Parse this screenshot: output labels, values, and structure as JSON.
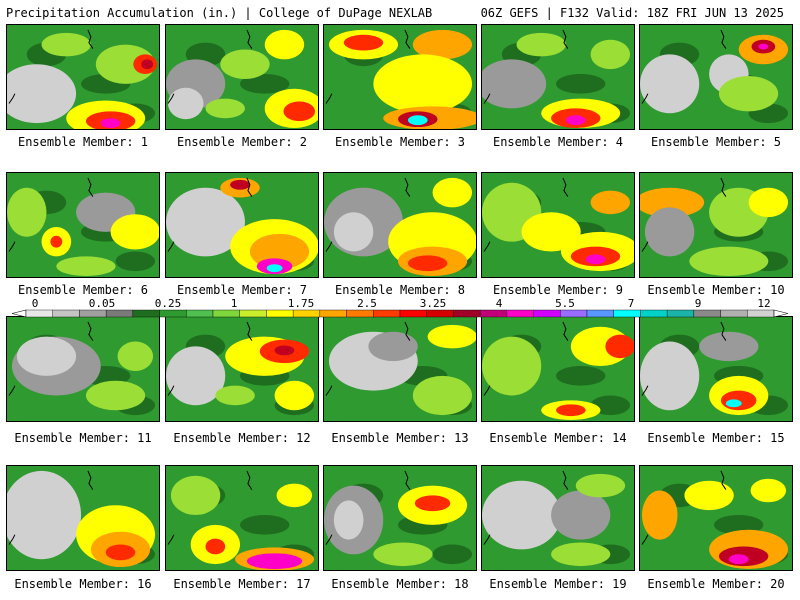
{
  "header": {
    "left": "Precipitation Accumulation (in.) | College of DuPage NEXLAB",
    "right": "06Z GEFS | F132 Valid: 18Z FRI JUN 13 2025"
  },
  "members": [
    {
      "label": "Ensemble Member: 1"
    },
    {
      "label": "Ensemble Member: 2"
    },
    {
      "label": "Ensemble Member: 3"
    },
    {
      "label": "Ensemble Member: 4"
    },
    {
      "label": "Ensemble Member: 5"
    },
    {
      "label": "Ensemble Member: 6"
    },
    {
      "label": "Ensemble Member: 7"
    },
    {
      "label": "Ensemble Member: 8"
    },
    {
      "label": "Ensemble Member: 9"
    },
    {
      "label": "Ensemble Member: 10"
    },
    {
      "label": "Ensemble Member: 11"
    },
    {
      "label": "Ensemble Member: 12"
    },
    {
      "label": "Ensemble Member: 13"
    },
    {
      "label": "Ensemble Member: 14"
    },
    {
      "label": "Ensemble Member: 15"
    },
    {
      "label": "Ensemble Member: 16"
    },
    {
      "label": "Ensemble Member: 17"
    },
    {
      "label": "Ensemble Member: 18"
    },
    {
      "label": "Ensemble Member: 19"
    },
    {
      "label": "Ensemble Member: 20"
    }
  ],
  "legend": {
    "tick_labels": [
      "0",
      "0.05",
      "0.25",
      "1",
      "1.75",
      "2.5",
      "3.25",
      "4",
      "5.5",
      "7",
      "9",
      "12"
    ],
    "colors": [
      "#e8e8e8",
      "#c4c4c4",
      "#a0a0a0",
      "#7a7a7a",
      "#1f6e1f",
      "#2f9a2f",
      "#4fc04f",
      "#7fd83a",
      "#c8ee2c",
      "#ffff00",
      "#ffd200",
      "#ffa500",
      "#ff7a00",
      "#ff3c00",
      "#ff0000",
      "#d40000",
      "#a00028",
      "#c00078",
      "#ff00c8",
      "#d000ff",
      "#9a6cff",
      "#5a96ff",
      "#00ffff",
      "#00d2c8",
      "#1ab4a8",
      "#8a8a8a",
      "#b0b0b0",
      "#d2d2d2"
    ]
  },
  "precip_colors": {
    "light_gray": "#d0d0d0",
    "gray": "#9a9a9a",
    "dark_green": "#1f6e1f",
    "green": "#2f9a2f",
    "light_green": "#4fc04f",
    "lime": "#9ade36",
    "yellow": "#ffff00",
    "orange": "#ffa500",
    "red": "#ff2a00",
    "dark_red": "#c00020",
    "magenta": "#ff00c8",
    "cyan": "#00ffff"
  }
}
